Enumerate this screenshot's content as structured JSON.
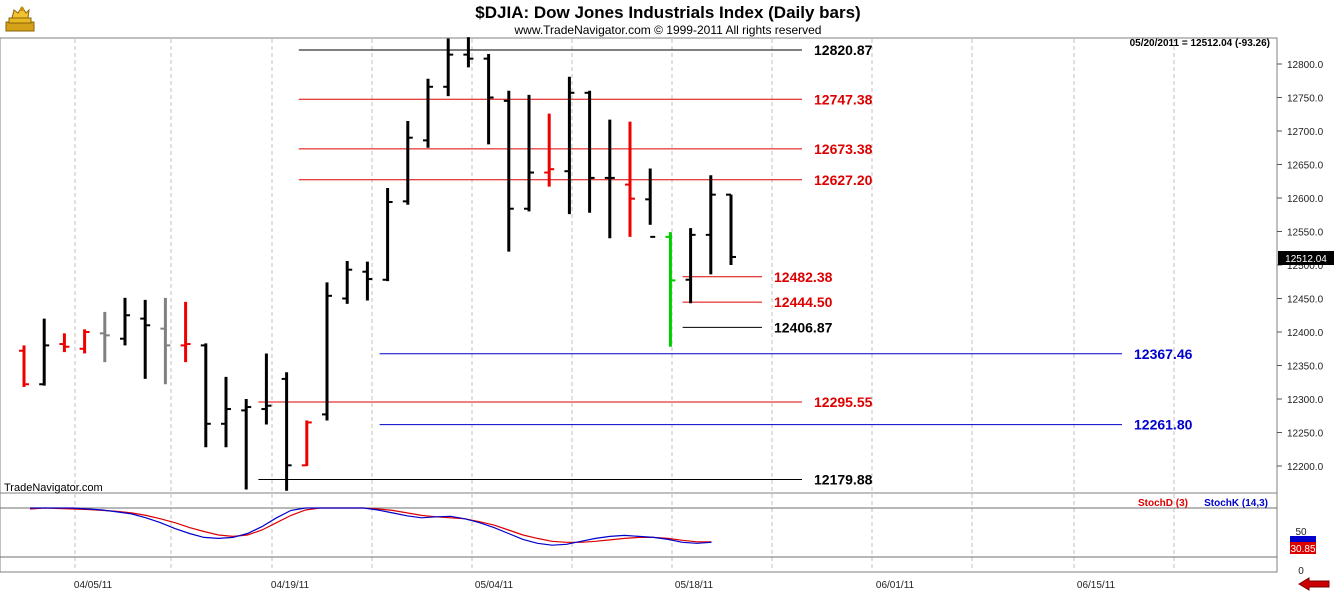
{
  "header": {
    "title": "$DJIA:  Dow Jones Industrials Index  (Daily bars)",
    "copyright": "www.TradeNavigator.com © 1999-2011 All rights reserved",
    "readout": "05/20/2011 = 12512.04 (-93.26)",
    "brand": "TradeNavigator.com",
    "logo_icon": "golden-bull-icon"
  },
  "price_panel": {
    "last_price_label": "12512.04",
    "y_ticks": [
      "12800.0",
      "12750.0",
      "12700.0",
      "12650.0",
      "12600.0",
      "12550.0",
      "12500.0",
      "12450.0",
      "12400.0",
      "12350.0",
      "12300.0",
      "12250.0",
      "12200.0"
    ],
    "x_ticks": [
      "04/05/11",
      "04/19/11",
      "05/04/11",
      "05/18/11",
      "06/01/11",
      "06/15/11"
    ]
  },
  "levels": [
    {
      "value": 12820.87,
      "label": "12820.87",
      "color": "#000000",
      "from": 14,
      "to": 38
    },
    {
      "value": 12747.38,
      "label": "12747.38",
      "color": "#dd0000",
      "from": 14,
      "to": 38
    },
    {
      "value": 12673.38,
      "label": "12673.38",
      "color": "#dd0000",
      "from": 14,
      "to": 38
    },
    {
      "value": 12627.2,
      "label": "12627.20",
      "color": "#dd0000",
      "from": 14,
      "to": 38
    },
    {
      "value": 12482.38,
      "label": "12482.38",
      "color": "#dd0000",
      "from": 33,
      "to": 36
    },
    {
      "value": 12444.5,
      "label": "12444.50",
      "color": "#dd0000",
      "from": 33,
      "to": 36
    },
    {
      "value": 12406.87,
      "label": "12406.87",
      "color": "#000000",
      "from": 33,
      "to": 36
    },
    {
      "value": 12367.46,
      "label": "12367.46",
      "color": "#0000cc",
      "from": 18,
      "to": 55
    },
    {
      "value": 12295.55,
      "label": "12295.55",
      "color": "#dd0000",
      "from": 12,
      "to": 38
    },
    {
      "value": 12261.8,
      "label": "12261.80",
      "color": "#0000cc",
      "from": 18,
      "to": 55
    },
    {
      "value": 12179.88,
      "label": "12179.88",
      "color": "#000000",
      "from": 12,
      "to": 38
    }
  ],
  "stoch_panel": {
    "legend_d": "StochD (3)",
    "legend_k": "StochK (14,3)",
    "y_ticks": [
      "50",
      "0"
    ],
    "badge_k": "30.85",
    "badge_d": "30.85",
    "color_d": "#dd0000",
    "color_k": "#0000cc"
  },
  "chart_data": {
    "type": "bar",
    "title": "$DJIA:  Dow Jones Industrials Index  (Daily bars)",
    "ylim": [
      12160,
      12840
    ],
    "x_ticks": [
      "04/05/11",
      "04/19/11",
      "05/04/11",
      "05/18/11",
      "06/01/11",
      "06/15/11"
    ],
    "series": [
      {
        "name": "$DJIA",
        "columns": [
          "open",
          "high",
          "low",
          "close",
          "color"
        ],
        "bars": [
          [
            12372,
            12380,
            12318,
            12322,
            "red"
          ],
          [
            12322,
            12420,
            12320,
            12380,
            "black"
          ],
          [
            12382,
            12398,
            12370,
            12378,
            "red"
          ],
          [
            12375,
            12404,
            12368,
            12400,
            "red"
          ],
          [
            12398,
            12430,
            12355,
            12395,
            "gray"
          ],
          [
            12390,
            12451,
            12380,
            12425,
            "black"
          ],
          [
            12420,
            12448,
            12330,
            12410,
            "black"
          ],
          [
            12405,
            12451,
            12322,
            12380,
            "gray"
          ],
          [
            12380,
            12445,
            12355,
            12382,
            "red"
          ],
          [
            12380,
            12383,
            12228,
            12263,
            "black"
          ],
          [
            12263,
            12333,
            12228,
            12285,
            "black"
          ],
          [
            12283,
            12300,
            12165,
            12288,
            "black"
          ],
          [
            12285,
            12368,
            12262,
            12290,
            "black"
          ],
          [
            12330,
            12340,
            12163,
            12201,
            "black"
          ],
          [
            12201,
            12268,
            12200,
            12265,
            "red"
          ],
          [
            12277,
            12474,
            12268,
            12454,
            "black"
          ],
          [
            12450,
            12506,
            12442,
            12493,
            "black"
          ],
          [
            12490,
            12505,
            12447,
            12479,
            "black"
          ],
          [
            12478,
            12615,
            12476,
            12594,
            "black"
          ],
          [
            12595,
            12715,
            12590,
            12690,
            "black"
          ],
          [
            12686,
            12778,
            12675,
            12766,
            "black"
          ],
          [
            12766,
            12838,
            12752,
            12814,
            "black"
          ],
          [
            12814,
            12840,
            12795,
            12808,
            "black"
          ],
          [
            12808,
            12815,
            12680,
            12750,
            "black"
          ],
          [
            12745,
            12760,
            12520,
            12584,
            "black"
          ],
          [
            12584,
            12754,
            12580,
            12638,
            "black"
          ],
          [
            12638,
            12726,
            12617,
            12643,
            "red"
          ],
          [
            12640,
            12781,
            12576,
            12757,
            "black"
          ],
          [
            12757,
            12760,
            12578,
            12630,
            "black"
          ],
          [
            12630,
            12717,
            12540,
            12630,
            "black"
          ],
          [
            12620,
            12714,
            12542,
            12599,
            "red"
          ],
          [
            12598,
            12644,
            12560,
            12542,
            "black"
          ],
          [
            12542,
            12549,
            12378,
            12477,
            "green"
          ],
          [
            12478,
            12555,
            12443,
            12545,
            "black"
          ],
          [
            12545,
            12634,
            12486,
            12605,
            "black"
          ],
          [
            12605,
            12605,
            12500,
            12512,
            "black"
          ]
        ]
      }
    ],
    "stochastics": {
      "ylim": [
        0,
        100
      ],
      "series": [
        {
          "name": "StochD (3)",
          "values": [
            98,
            100,
            99,
            98,
            97,
            95,
            93,
            90,
            85,
            78,
            70,
            60,
            52,
            45,
            42,
            45,
            55,
            70,
            85,
            96,
            100,
            100,
            100,
            100,
            98,
            95,
            90,
            85,
            82,
            80,
            78,
            72,
            65,
            55,
            45,
            38,
            32,
            30,
            30,
            32,
            35,
            38,
            40,
            40,
            38,
            34,
            31,
            31,
            31
          ]
        },
        {
          "name": "StochK (14,3)",
          "values": [
            100,
            100,
            100,
            100,
            98,
            96,
            92,
            88,
            80,
            70,
            58,
            48,
            40,
            38,
            40,
            48,
            62,
            80,
            95,
            100,
            100,
            100,
            100,
            100,
            96,
            90,
            84,
            80,
            82,
            83,
            78,
            70,
            60,
            48,
            36,
            28,
            24,
            26,
            32,
            38,
            42,
            44,
            42,
            40,
            36,
            30,
            28,
            30,
            31
          ]
        }
      ]
    }
  }
}
